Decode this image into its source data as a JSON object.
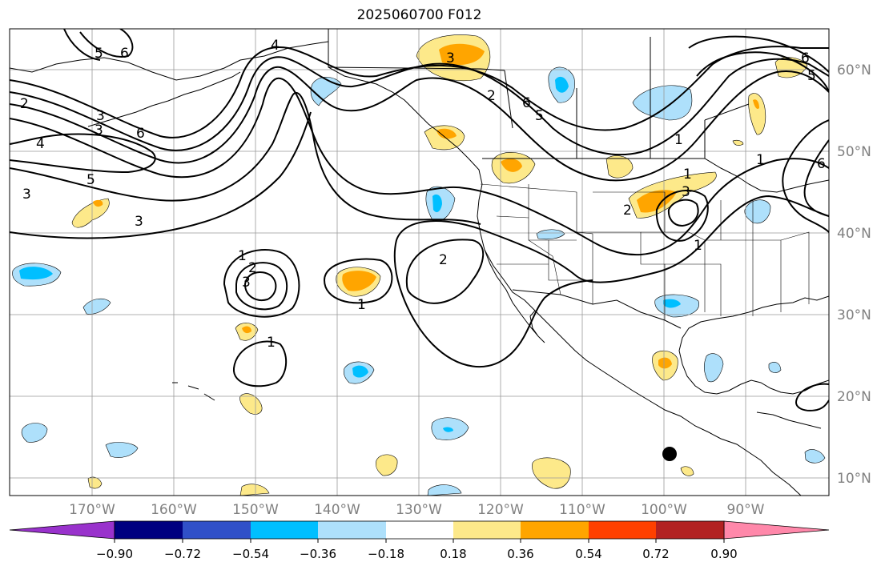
{
  "title": "2025060700 F012",
  "colors": {
    "neg_strong": "#000080",
    "neg_3": "#3050c8",
    "neg_2": "#00bfff",
    "neg_1": "#aee0fb",
    "pos_1": "#fde98a",
    "pos_2": "#ffa500",
    "pos_3": "#ff4000",
    "pos_4": "#b22222",
    "pos_extreme": "#ff88aa",
    "neg_extreme": "#9932cc",
    "contour": "#000000",
    "grid": "#999999"
  },
  "map": {
    "lat_labels": [
      "60°N",
      "50°N",
      "40°N",
      "30°N",
      "20°N",
      "10°N"
    ],
    "lon_labels": [
      "170°W",
      "160°W",
      "150°W",
      "140°W",
      "130°W",
      "120°W",
      "110°W",
      "100°W",
      "90°W"
    ]
  },
  "colorbar": {
    "ticks": [
      "−0.90",
      "−0.72",
      "−0.54",
      "−0.36",
      "−0.18",
      "0.18",
      "0.36",
      "0.54",
      "0.72",
      "0.90"
    ],
    "segment_colors": [
      "#000080",
      "#3050c8",
      "#00bfff",
      "#aee0fb",
      "#ffffff",
      "#fde98a",
      "#ffa500",
      "#ff4000",
      "#b22222"
    ],
    "under_color": "#9932cc",
    "over_color": "#ff88aa"
  },
  "contour_labels": [
    "1",
    "2",
    "3",
    "4",
    "5",
    "6"
  ]
}
